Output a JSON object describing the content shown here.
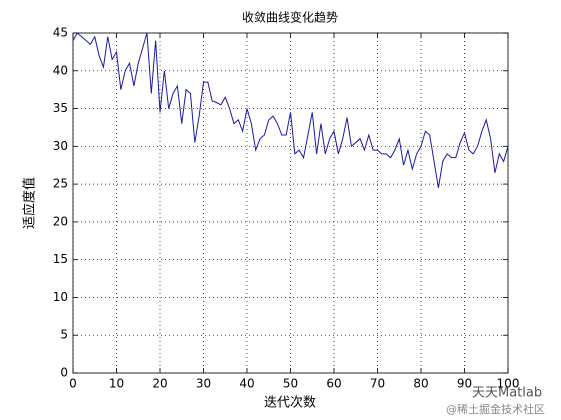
{
  "chart_data": {
    "type": "line",
    "title": "收敛曲线变化趋势",
    "xlabel": "迭代次数",
    "ylabel": "适应度值",
    "color": "#1a1aa6",
    "grid": true,
    "x": [
      0,
      1,
      2,
      3,
      4,
      5,
      6,
      7,
      8,
      9,
      10,
      11,
      12,
      13,
      14,
      15,
      16,
      17,
      18,
      19,
      20,
      21,
      22,
      23,
      24,
      25,
      26,
      27,
      28,
      29,
      30,
      31,
      32,
      33,
      34,
      35,
      36,
      37,
      38,
      39,
      40,
      41,
      42,
      43,
      44,
      45,
      46,
      47,
      48,
      49,
      50,
      51,
      52,
      53,
      54,
      55,
      56,
      57,
      58,
      59,
      60,
      61,
      62,
      63,
      64,
      65,
      66,
      67,
      68,
      69,
      70,
      71,
      72,
      73,
      74,
      75,
      76,
      77,
      78,
      79,
      80,
      81,
      82,
      83,
      84,
      85,
      86,
      87,
      88,
      89,
      90,
      91,
      92,
      93,
      94,
      95,
      96,
      97,
      98,
      99,
      100
    ],
    "values": [
      44,
      45,
      44.5,
      44,
      43.5,
      44.5,
      42,
      40.5,
      44.5,
      41.5,
      42.5,
      37.5,
      40,
      41,
      38,
      41,
      43,
      45,
      37,
      44,
      34.5,
      40,
      35,
      37,
      38,
      33,
      37.5,
      37,
      30.5,
      34,
      38.5,
      38.5,
      36,
      35.8,
      35.5,
      36.5,
      35,
      33,
      33.5,
      32,
      35,
      33,
      29.5,
      31,
      31.5,
      33.5,
      34,
      33,
      31.5,
      31.5,
      34.5,
      29,
      29.5,
      28.5,
      31.5,
      34.5,
      29,
      33,
      29,
      31,
      32,
      29,
      31,
      33.8,
      30,
      30.5,
      31,
      29.5,
      31.5,
      29.5,
      29.5,
      29,
      29,
      28.5,
      29.5,
      31,
      27.5,
      29.5,
      27,
      29,
      30,
      32,
      31.5,
      28,
      24.5,
      28,
      29,
      28.5,
      28.5,
      30.5,
      31.8,
      29.5,
      29,
      30,
      32,
      33.5,
      31,
      26.5,
      29,
      28,
      30
    ],
    "xlim": [
      0,
      100
    ],
    "ylim": [
      0,
      45
    ],
    "xticks": [
      0,
      10,
      20,
      30,
      40,
      50,
      60,
      70,
      80,
      90,
      100
    ],
    "yticks": [
      0,
      5,
      10,
      15,
      20,
      25,
      30,
      35,
      40,
      45
    ]
  },
  "watermark": {
    "brand": "天天Matlab",
    "site": "@稀土掘金技术社区"
  }
}
